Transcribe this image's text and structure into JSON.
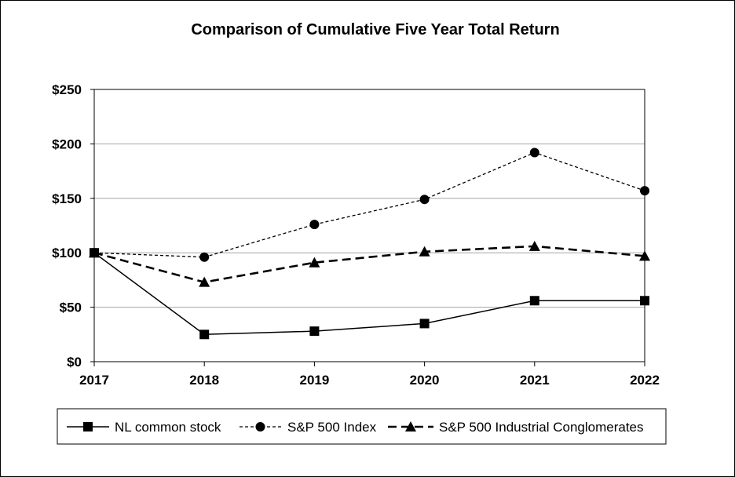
{
  "chart_data": {
    "type": "line",
    "title": "Comparison of Cumulative Five Year Total Return",
    "xlabel": "",
    "ylabel": "",
    "x": [
      "2017",
      "2018",
      "2019",
      "2020",
      "2021",
      "2022"
    ],
    "ylim": [
      0,
      250
    ],
    "yticks": [
      0,
      50,
      100,
      150,
      200,
      250
    ],
    "ytick_labels": [
      "$0",
      "$50",
      "$100",
      "$150",
      "$200",
      "$250"
    ],
    "grid": true,
    "legend_position": "bottom",
    "series": [
      {
        "name": "NL common stock",
        "values": [
          100,
          25,
          28,
          35,
          56,
          56
        ],
        "marker": "square",
        "line_style": "solid",
        "color": "#000000"
      },
      {
        "name": "S&P 500 Index",
        "values": [
          100,
          96,
          126,
          149,
          192,
          157
        ],
        "marker": "circle",
        "line_style": "dotted",
        "color": "#000000"
      },
      {
        "name": "S&P 500 Industrial Conglomerates",
        "values": [
          100,
          73,
          91,
          101,
          106,
          97
        ],
        "marker": "triangle",
        "line_style": "dashed",
        "color": "#000000"
      }
    ]
  }
}
